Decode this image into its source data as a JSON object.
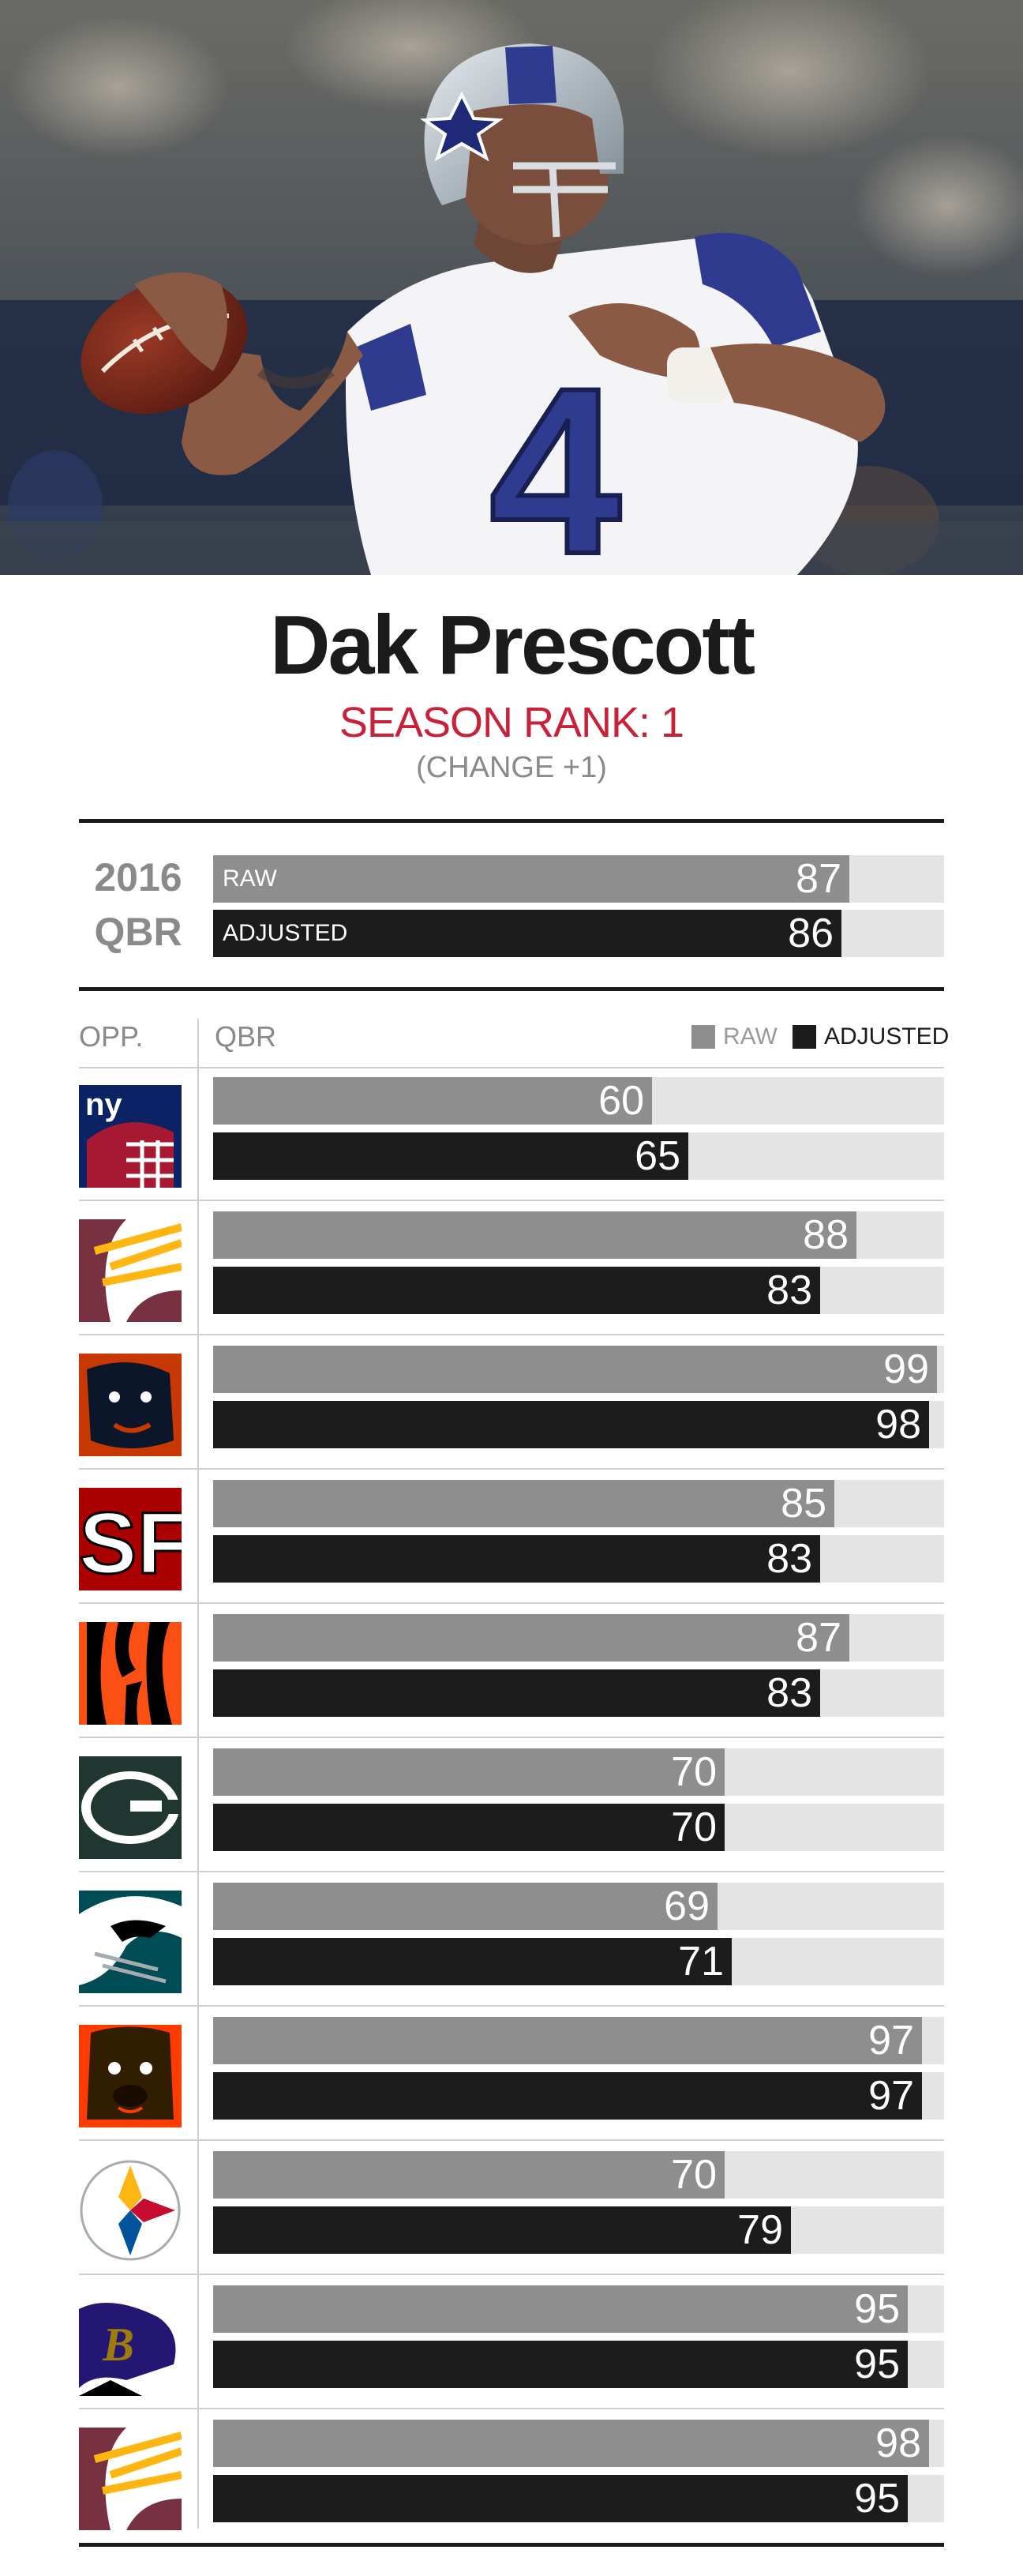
{
  "player": {
    "name": "Dak Prescott",
    "season_rank": "SEASON RANK: 1",
    "change": "(CHANGE +1)",
    "jersey_number": "4"
  },
  "season": {
    "year_label": "2016",
    "metric_label": "QBR",
    "raw_label": "RAW",
    "raw_value": 87,
    "adjusted_label": "ADJUSTED",
    "adjusted_value": 86
  },
  "table": {
    "opp_header": "OPP.",
    "qbr_header": "QBR",
    "legend": {
      "raw": "RAW",
      "adjusted": "ADJUSTED"
    }
  },
  "colors": {
    "raw": "#8e8e8e",
    "adjusted": "#1c1c1c",
    "track": "#e4e4e4",
    "rank_red": "#c8213a"
  },
  "chart_data": {
    "type": "bar",
    "orientation": "horizontal",
    "xlim": [
      0,
      100
    ],
    "categories": [
      "giants-logo",
      "redskins-logo",
      "bears-logo",
      "49ers-logo",
      "bengals-logo",
      "packers-logo",
      "eagles-logo",
      "browns-logo",
      "steelers-logo",
      "ravens-logo",
      "redskins-logo"
    ],
    "series": [
      {
        "name": "RAW",
        "values": [
          60,
          88,
          99,
          85,
          87,
          70,
          69,
          97,
          70,
          95,
          98
        ]
      },
      {
        "name": "ADJUSTED",
        "values": [
          65,
          83,
          98,
          83,
          83,
          70,
          71,
          97,
          79,
          95,
          95
        ]
      }
    ],
    "legend": "top-right"
  }
}
